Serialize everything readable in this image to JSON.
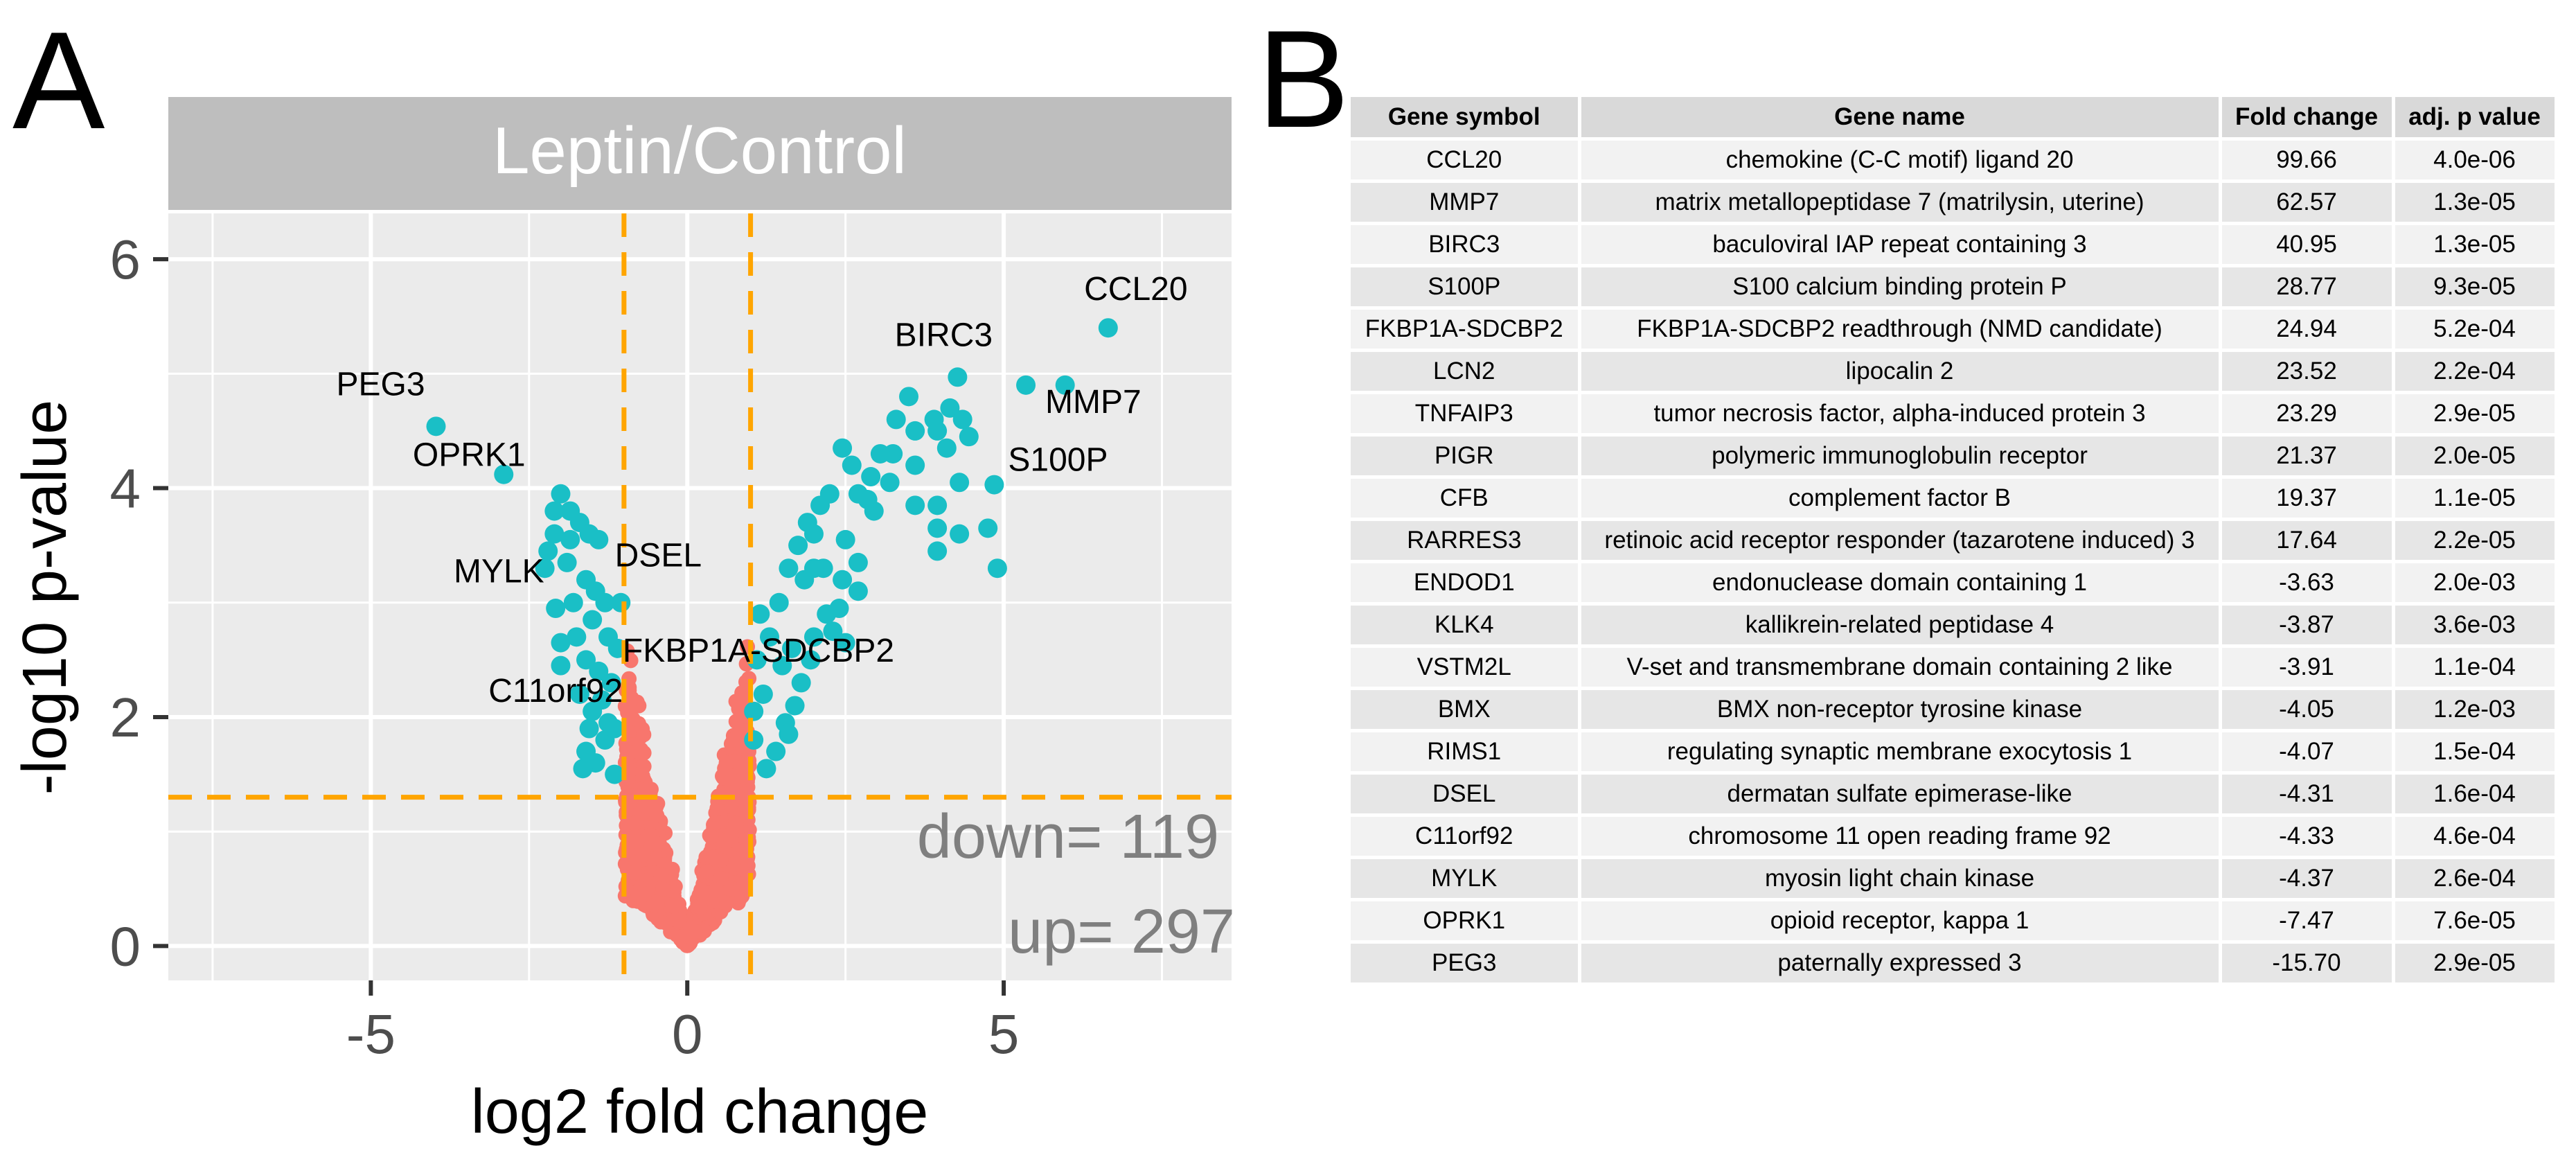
{
  "panel_a": {
    "letter": "A",
    "chart_data": {
      "type": "scatter",
      "strip_title": "Leptin/Control",
      "xlabel": "log2 fold change",
      "ylabel": "-log10 p-value",
      "xlim": [
        -8.2,
        8.6
      ],
      "ylim": [
        -0.3,
        6.4
      ],
      "x_ticks": [
        -5,
        0,
        5
      ],
      "x_tick_labels": [
        "-5",
        "0",
        "5"
      ],
      "y_ticks": [
        0,
        2,
        4,
        6
      ],
      "y_tick_labels": [
        "0",
        "2",
        "4",
        "6"
      ],
      "thresholds": {
        "fold_change_low": -1,
        "fold_change_high": 1,
        "p_line": 1.3
      },
      "colors": {
        "significant": "#1ABFC6",
        "not_significant": "#F8766D",
        "threshold_line": "#FFA500",
        "panel_bg": "#EBEBEB",
        "strip_bg": "#BEBEBE",
        "count_text": "#7F7F7F"
      },
      "counts": {
        "down_label": "down= 119",
        "up_label": "up= 297"
      },
      "labeled_points": [
        {
          "gene": "CCL20",
          "x": 6.65,
          "y": 5.4
        },
        {
          "gene": "MMP7",
          "x": 5.97,
          "y": 4.9
        },
        {
          "gene": "BIRC3",
          "x": 4.27,
          "y": 4.97
        },
        {
          "gene": "S100P",
          "x": 4.85,
          "y": 4.03
        },
        {
          "gene": "FKBP1A-SDCBP2",
          "x": 2.0,
          "y": 3.3
        },
        {
          "gene": "PEG3",
          "x": -3.97,
          "y": 4.54
        },
        {
          "gene": "OPRK1",
          "x": -2.9,
          "y": 4.12
        },
        {
          "gene": "MYLK",
          "x": -2.1,
          "y": 3.6
        },
        {
          "gene": "DSEL",
          "x": -2.1,
          "y": 3.8
        },
        {
          "gene": "C11orf92",
          "x": -2.08,
          "y": 2.95
        }
      ],
      "significant_points": [
        [
          -2.0,
          3.95
        ],
        [
          -1.85,
          3.8
        ],
        [
          -1.7,
          3.7
        ],
        [
          -1.55,
          3.6
        ],
        [
          -1.4,
          3.55
        ],
        [
          -2.2,
          3.45
        ],
        [
          -2.25,
          3.3
        ],
        [
          -1.9,
          3.35
        ],
        [
          -1.6,
          3.2
        ],
        [
          -1.45,
          3.1
        ],
        [
          -1.8,
          3.0
        ],
        [
          -1.3,
          3.0
        ],
        [
          -1.5,
          2.85
        ],
        [
          -1.75,
          2.7
        ],
        [
          -2.0,
          2.65
        ],
        [
          -1.25,
          2.7
        ],
        [
          -1.6,
          2.5
        ],
        [
          -2.0,
          2.45
        ],
        [
          -1.4,
          2.4
        ],
        [
          -1.7,
          2.2
        ],
        [
          -1.2,
          2.3
        ],
        [
          -1.5,
          2.05
        ],
        [
          -1.55,
          1.9
        ],
        [
          -1.25,
          1.95
        ],
        [
          -1.6,
          1.7
        ],
        [
          -1.3,
          1.8
        ],
        [
          -1.45,
          1.6
        ],
        [
          -1.15,
          1.5
        ],
        [
          -1.15,
          1.9
        ],
        [
          -1.65,
          1.55
        ],
        [
          -1.35,
          2.15
        ],
        [
          -1.1,
          2.6
        ],
        [
          -1.85,
          3.55
        ],
        [
          -1.05,
          3.0
        ],
        [
          3.5,
          4.8
        ],
        [
          3.3,
          4.6
        ],
        [
          3.6,
          4.5
        ],
        [
          3.9,
          4.6
        ],
        [
          4.15,
          4.7
        ],
        [
          4.35,
          4.6
        ],
        [
          4.45,
          4.45
        ],
        [
          5.35,
          4.9
        ],
        [
          3.95,
          4.5
        ],
        [
          3.25,
          4.3
        ],
        [
          3.05,
          4.3
        ],
        [
          3.2,
          4.05
        ],
        [
          3.6,
          4.2
        ],
        [
          4.1,
          4.35
        ],
        [
          3.6,
          3.85
        ],
        [
          3.95,
          3.85
        ],
        [
          4.3,
          4.05
        ],
        [
          3.95,
          3.65
        ],
        [
          3.95,
          3.45
        ],
        [
          4.75,
          3.65
        ],
        [
          4.9,
          3.3
        ],
        [
          4.3,
          3.6
        ],
        [
          2.6,
          4.2
        ],
        [
          2.45,
          4.35
        ],
        [
          2.7,
          3.95
        ],
        [
          2.85,
          3.9
        ],
        [
          2.9,
          4.1
        ],
        [
          2.95,
          3.8
        ],
        [
          2.5,
          3.55
        ],
        [
          2.7,
          3.35
        ],
        [
          2.45,
          3.2
        ],
        [
          2.4,
          2.95
        ],
        [
          2.3,
          2.75
        ],
        [
          2.5,
          2.65
        ],
        [
          2.7,
          3.1
        ],
        [
          1.95,
          2.5
        ],
        [
          1.8,
          2.3
        ],
        [
          1.7,
          2.1
        ],
        [
          1.55,
          1.95
        ],
        [
          1.25,
          1.55
        ],
        [
          1.4,
          1.7
        ],
        [
          1.6,
          1.85
        ],
        [
          1.05,
          1.8
        ],
        [
          1.05,
          2.05
        ],
        [
          1.15,
          2.9
        ],
        [
          1.1,
          2.5
        ],
        [
          1.2,
          2.2
        ],
        [
          1.3,
          2.7
        ],
        [
          1.45,
          3.0
        ],
        [
          1.6,
          3.3
        ],
        [
          1.75,
          3.5
        ],
        [
          1.9,
          3.7
        ],
        [
          2.1,
          3.85
        ],
        [
          2.25,
          3.95
        ],
        [
          2.0,
          3.6
        ],
        [
          1.85,
          3.2
        ],
        [
          2.15,
          3.3
        ],
        [
          1.5,
          2.45
        ],
        [
          1.65,
          2.6
        ],
        [
          2.2,
          2.9
        ],
        [
          2.0,
          2.7
        ]
      ],
      "nonsig_band": {
        "seed": 7,
        "count": 1400
      }
    }
  },
  "panel_b": {
    "letter": "B",
    "table": {
      "headers": [
        "Gene symbol",
        "Gene name",
        "Fold change",
        "adj. p value"
      ],
      "rows": [
        [
          "CCL20",
          "chemokine (C-C motif) ligand 20",
          "99.66",
          "4.0e-06"
        ],
        [
          "MMP7",
          "matrix metallopeptidase 7 (matrilysin, uterine)",
          "62.57",
          "1.3e-05"
        ],
        [
          "BIRC3",
          "baculoviral IAP repeat containing 3",
          "40.95",
          "1.3e-05"
        ],
        [
          "S100P",
          "S100 calcium binding protein P",
          "28.77",
          "9.3e-05"
        ],
        [
          "FKBP1A-SDCBP2",
          "FKBP1A-SDCBP2 readthrough (NMD candidate)",
          "24.94",
          "5.2e-04"
        ],
        [
          "LCN2",
          "lipocalin 2",
          "23.52",
          "2.2e-04"
        ],
        [
          "TNFAIP3",
          "tumor necrosis factor, alpha-induced protein 3",
          "23.29",
          "2.9e-05"
        ],
        [
          "PIGR",
          "polymeric immunoglobulin receptor",
          "21.37",
          "2.0e-05"
        ],
        [
          "CFB",
          "complement factor B",
          "19.37",
          "1.1e-05"
        ],
        [
          "RARRES3",
          "retinoic acid receptor responder (tazarotene induced) 3",
          "17.64",
          "2.2e-05"
        ],
        [
          "ENDOD1",
          "endonuclease domain containing 1",
          "-3.63",
          "2.0e-03"
        ],
        [
          "KLK4",
          "kallikrein-related peptidase 4",
          "-3.87",
          "3.6e-03"
        ],
        [
          "VSTM2L",
          "V-set and transmembrane domain containing 2 like",
          "-3.91",
          "1.1e-04"
        ],
        [
          "BMX",
          "BMX non-receptor tyrosine kinase",
          "-4.05",
          "1.2e-03"
        ],
        [
          "RIMS1",
          "regulating synaptic membrane exocytosis 1",
          "-4.07",
          "1.5e-04"
        ],
        [
          "DSEL",
          "dermatan sulfate epimerase-like",
          "-4.31",
          "1.6e-04"
        ],
        [
          "C11orf92",
          "chromosome 11 open reading frame 92",
          "-4.33",
          "4.6e-04"
        ],
        [
          "MYLK",
          "myosin light chain kinase",
          "-4.37",
          "2.6e-04"
        ],
        [
          "OPRK1",
          "opioid receptor, kappa 1",
          "-7.47",
          "7.6e-05"
        ],
        [
          "PEG3",
          "paternally expressed 3",
          "-15.70",
          "2.9e-05"
        ]
      ]
    }
  }
}
